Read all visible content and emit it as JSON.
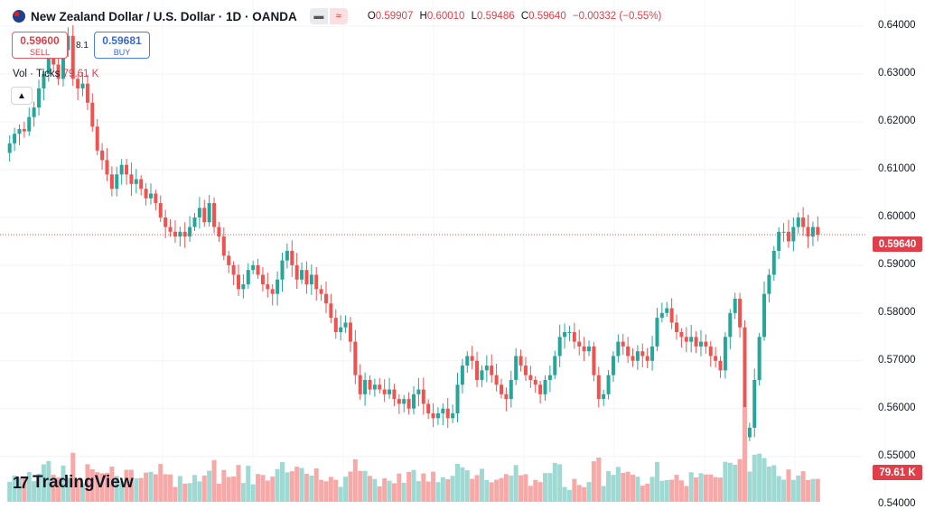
{
  "header": {
    "title": "New Zealand Dollar / U.S. Dollar · 1D · OANDA",
    "ohlc": {
      "o_label": "O",
      "o": "0.59907",
      "h_label": "H",
      "h": "0.60010",
      "l_label": "L",
      "l": "0.59486",
      "c_label": "C",
      "c": "0.59640",
      "change": "−0.00332 (−0.55%)"
    }
  },
  "trade": {
    "sell_price": "0.59600",
    "sell_label": "SELL",
    "buy_price": "0.59681",
    "buy_label": "BUY",
    "spread": "8.1"
  },
  "volume": {
    "label": "Vol · Ticks",
    "value": "79.61 K"
  },
  "collapse_icon": "chevron-up-icon",
  "price_label": "0.59640",
  "volume_label": "79.61 K",
  "logo_text": "TradingView",
  "colors": {
    "up": "#26a69a",
    "down": "#ef5350",
    "up_vol": "#9ed9d3",
    "down_vol": "#f7a9a8"
  },
  "chart_data": {
    "type": "candlestick",
    "y_ticks": [
      "0.64000",
      "0.63000",
      "0.62000",
      "0.61000",
      "0.60000",
      "0.59000",
      "0.58000",
      "0.57000",
      "0.56000",
      "0.55000",
      "0.54000"
    ],
    "ylim": [
      0.5405,
      0.6455
    ],
    "last_price": 0.5964,
    "closes": [
      0.6155,
      0.6175,
      0.6185,
      0.618,
      0.621,
      0.623,
      0.627,
      0.63,
      0.634,
      0.632,
      0.629,
      0.635,
      0.638,
      0.629,
      0.627,
      0.628,
      0.624,
      0.619,
      0.614,
      0.612,
      0.609,
      0.606,
      0.609,
      0.611,
      0.609,
      0.607,
      0.608,
      0.606,
      0.604,
      0.605,
      0.603,
      0.6,
      0.598,
      0.597,
      0.596,
      0.597,
      0.596,
      0.598,
      0.6,
      0.602,
      0.599,
      0.603,
      0.598,
      0.596,
      0.592,
      0.59,
      0.588,
      0.585,
      0.586,
      0.589,
      0.59,
      0.588,
      0.586,
      0.585,
      0.584,
      0.587,
      0.591,
      0.593,
      0.59,
      0.587,
      0.589,
      0.586,
      0.588,
      0.585,
      0.584,
      0.582,
      0.579,
      0.576,
      0.577,
      0.578,
      0.574,
      0.567,
      0.563,
      0.566,
      0.564,
      0.565,
      0.564,
      0.563,
      0.564,
      0.562,
      0.561,
      0.562,
      0.56,
      0.563,
      0.564,
      0.561,
      0.559,
      0.558,
      0.559,
      0.56,
      0.558,
      0.559,
      0.565,
      0.569,
      0.571,
      0.57,
      0.566,
      0.568,
      0.569,
      0.567,
      0.565,
      0.563,
      0.562,
      0.566,
      0.571,
      0.569,
      0.567,
      0.566,
      0.565,
      0.563,
      0.566,
      0.567,
      0.571,
      0.575,
      0.576,
      0.576,
      0.574,
      0.573,
      0.572,
      0.573,
      0.567,
      0.562,
      0.563,
      0.567,
      0.571,
      0.574,
      0.573,
      0.571,
      0.57,
      0.572,
      0.571,
      0.57,
      0.573,
      0.579,
      0.58,
      0.581,
      0.578,
      0.576,
      0.575,
      0.574,
      0.575,
      0.573,
      0.574,
      0.573,
      0.571,
      0.57,
      0.568,
      0.575,
      0.58,
      0.583,
      0.577,
      0.554,
      0.556,
      0.566,
      0.575,
      0.584,
      0.588,
      0.593,
      0.597,
      0.597,
      0.595,
      0.598,
      0.6,
      0.598,
      0.596,
      0.598,
      0.5964
    ]
  }
}
